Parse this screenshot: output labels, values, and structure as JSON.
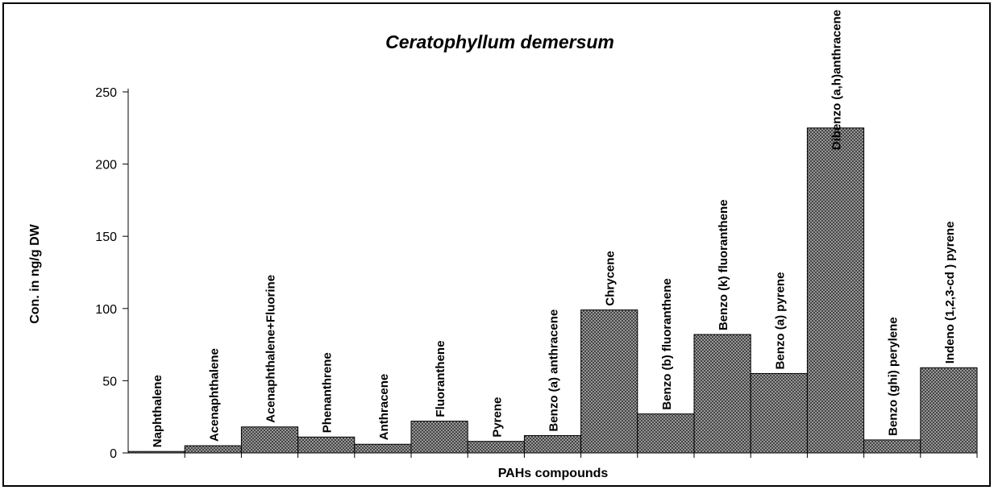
{
  "chart_data": {
    "type": "bar",
    "title": "Ceratophyllum demersum",
    "x_label": "PAHs compounds",
    "y_label": "Con. in ng/g DW",
    "categories": [
      "Naphthalene",
      "Acenaphthalene",
      "Acenaphthalene+Fluorine",
      "Phenanthrene",
      "Anthracene",
      "Fluoranthene",
      "Pyrene",
      "Benzo (a) anthracene",
      "Chrycene",
      "Benzo (b) fluoranthene",
      "Benzo (k) fluoranthene",
      "Benzo (a) pyrene",
      "Dibenzo (a,h)anthracene",
      "Benzo (ghi) perylene",
      "Indeno (1,2,3-cd ) pyrene"
    ],
    "values": [
      1,
      5,
      18,
      11,
      6,
      22,
      8,
      12,
      99,
      27,
      82,
      55,
      225,
      9,
      59
    ],
    "color": "#333333",
    "ylim": [
      0,
      250
    ],
    "yticks": [
      0,
      50,
      100,
      150,
      200,
      250
    ],
    "grid": false
  }
}
